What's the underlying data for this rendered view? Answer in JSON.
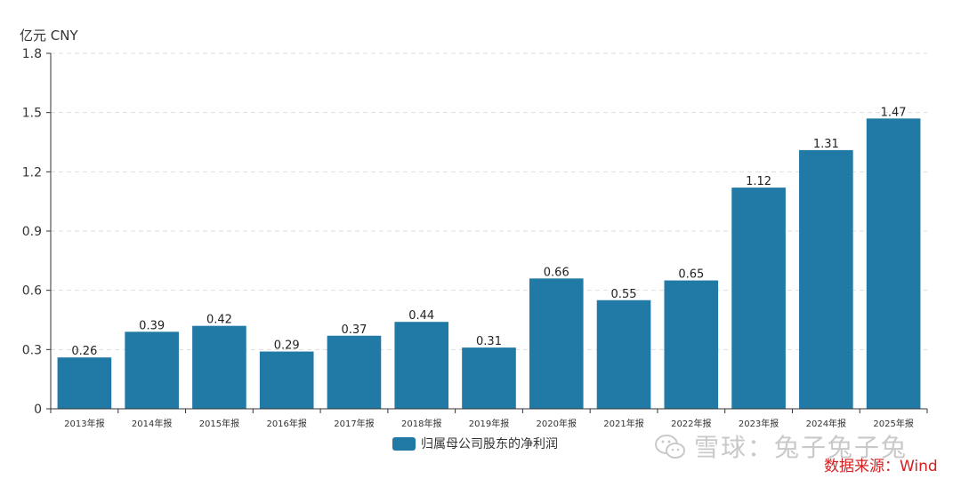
{
  "unit_label": "亿元  CNY",
  "legend": {
    "label": "归属母公司股东的净利润",
    "color": "#2179a6"
  },
  "watermark": {
    "text": "雪球：兔子兔子兔",
    "icon": "wechat-icon"
  },
  "source": "数据来源：Wind",
  "chart_data": {
    "type": "bar",
    "categories": [
      "2013年报",
      "2014年报",
      "2015年报",
      "2016年报",
      "2017年报",
      "2018年报",
      "2019年报",
      "2020年报",
      "2021年报",
      "2022年报",
      "2023年报",
      "2024年报",
      "2025年报"
    ],
    "series": [
      {
        "name": "归属母公司股东的净利润",
        "values": [
          0.26,
          0.39,
          0.42,
          0.29,
          0.37,
          0.44,
          0.31,
          0.66,
          0.55,
          0.65,
          1.12,
          1.31,
          1.47
        ],
        "labels": [
          "0.26",
          "0.39",
          "0.42",
          "0.29",
          "0.37",
          "0.44",
          "0.31",
          "0.66",
          "0.55",
          "0.65",
          "1.12",
          "1.31",
          "1.47"
        ]
      }
    ],
    "ylim": [
      0,
      1.8
    ],
    "yticks": [
      0,
      0.3,
      0.6,
      0.9,
      1.2,
      1.5,
      1.8
    ],
    "ytick_labels": [
      "0",
      "0.3",
      "0.6",
      "0.9",
      "1.2",
      "1.5",
      "1.8"
    ],
    "grid": true,
    "legend_position": "bottom-center"
  }
}
